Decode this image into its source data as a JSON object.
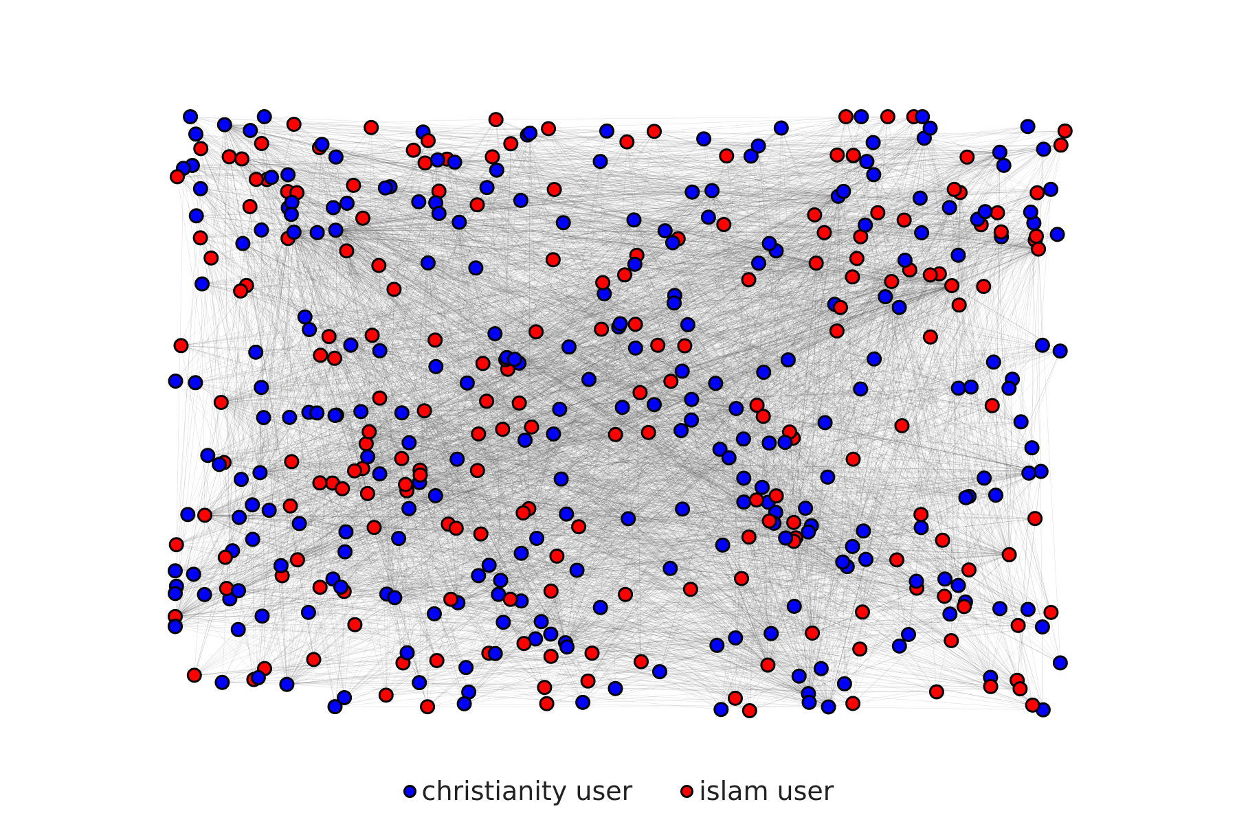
{
  "legend": {
    "christianity": {
      "label": "christianity user",
      "color": "#0000ff"
    },
    "islam": {
      "label": "islam user",
      "color": "#ff0000"
    }
  },
  "node_stroke": "#000000",
  "edge_color": "#555555"
}
